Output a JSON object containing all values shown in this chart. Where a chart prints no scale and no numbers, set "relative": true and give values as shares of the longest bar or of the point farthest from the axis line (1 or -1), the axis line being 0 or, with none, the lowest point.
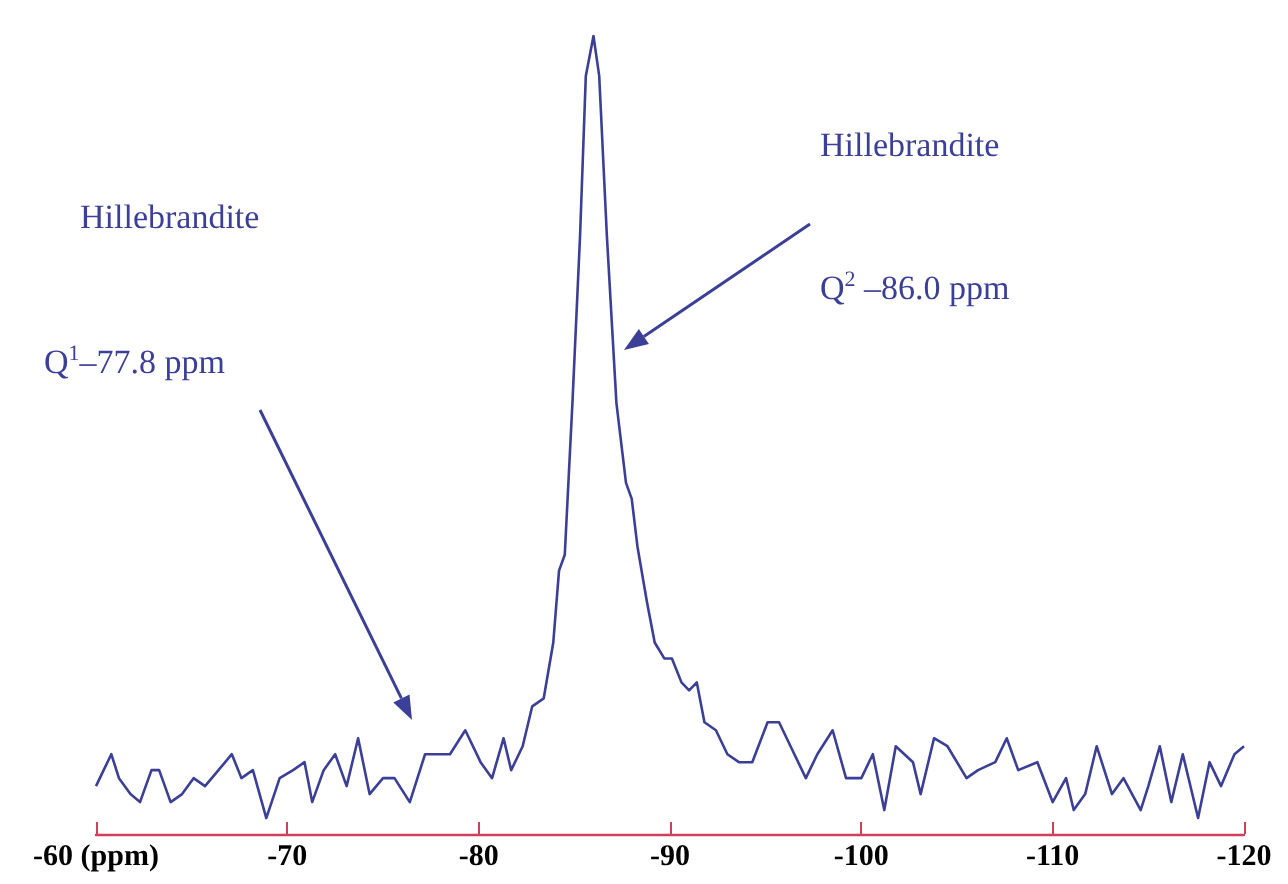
{
  "chart_data": {
    "type": "line",
    "relative": true,
    "xlim": [
      -60,
      -120
    ],
    "xticks": [
      {
        "value": -60,
        "label": "-60 (ppm)"
      },
      -70,
      -80,
      -90,
      -100,
      -110,
      -120
    ],
    "annotations": [
      "Hillebrandite",
      "Q$^{1}$–77.8 ppm",
      "Hillebrandite",
      "Q$^{2}$ –86.0 ppm"
    ],
    "series": [
      {
        "color": "#3b3f98",
        "x": [
          -60,
          -60.4,
          -60.8,
          -61.2,
          -61.8,
          -62.3,
          -62.9,
          -63.3,
          -63.9,
          -64.5,
          -65.1,
          -65.7,
          -66.4,
          -67.1,
          -67.6,
          -68.2,
          -68.9,
          -69.6,
          -70.3,
          -70.9,
          -71.3,
          -71.9,
          -72.5,
          -73.1,
          -73.7,
          -74.3,
          -75,
          -75.6,
          -76.4,
          -77.2,
          -77.8,
          -78.5,
          -79.3,
          -80.1,
          -80.7,
          -81.3,
          -81.7,
          -82.3,
          -82.8,
          -83.4,
          -83.9,
          -84.2,
          -84.5,
          -84.9,
          -85.3,
          -85.6,
          -86,
          -86.3,
          -86.7,
          -87.2,
          -87.7,
          -88,
          -88.3,
          -88.8,
          -89.2,
          -89.7,
          -90.1,
          -90.6,
          -91,
          -91.4,
          -91.8,
          -92.4,
          -93,
          -93.6,
          -94.3,
          -95.1,
          -95.7,
          -96.3,
          -97.1,
          -97.7,
          -98.5,
          -99.2,
          -100,
          -100.6,
          -101.2,
          -101.8,
          -102.7,
          -103.1,
          -103.8,
          -104.5,
          -105.5,
          -106.1,
          -107,
          -107.6,
          -108.2,
          -109.2,
          -110,
          -110.7,
          -111.1,
          -111.7,
          -112.3,
          -113.1,
          -113.7,
          -114.6,
          -115,
          -115.6,
          -116.2,
          -116.8,
          -117.6,
          -118.2,
          -118.8,
          -119.5,
          -120
        ],
        "values": [
          0.06,
          0.08,
          0.1,
          0.07,
          0.05,
          0.04,
          0.08,
          0.08,
          0.04,
          0.05,
          0.07,
          0.06,
          0.08,
          0.1,
          0.07,
          0.08,
          0.02,
          0.07,
          0.08,
          0.09,
          0.04,
          0.08,
          0.1,
          0.06,
          0.12,
          0.05,
          0.07,
          0.07,
          0.04,
          0.1,
          0.1,
          0.1,
          0.13,
          0.09,
          0.07,
          0.12,
          0.08,
          0.11,
          0.16,
          0.17,
          0.24,
          0.33,
          0.35,
          0.54,
          0.75,
          0.95,
          1,
          0.95,
          0.75,
          0.54,
          0.44,
          0.42,
          0.36,
          0.29,
          0.24,
          0.22,
          0.22,
          0.19,
          0.18,
          0.19,
          0.14,
          0.13,
          0.1,
          0.09,
          0.09,
          0.14,
          0.14,
          0.11,
          0.07,
          0.1,
          0.13,
          0.07,
          0.07,
          0.1,
          0.03,
          0.11,
          0.09,
          0.05,
          0.12,
          0.11,
          0.07,
          0.08,
          0.09,
          0.12,
          0.08,
          0.09,
          0.04,
          0.07,
          0.03,
          0.05,
          0.11,
          0.05,
          0.07,
          0.03,
          0.06,
          0.11,
          0.04,
          0.1,
          0.02,
          0.09,
          0.06,
          0.1,
          0.11
        ]
      }
    ]
  }
}
